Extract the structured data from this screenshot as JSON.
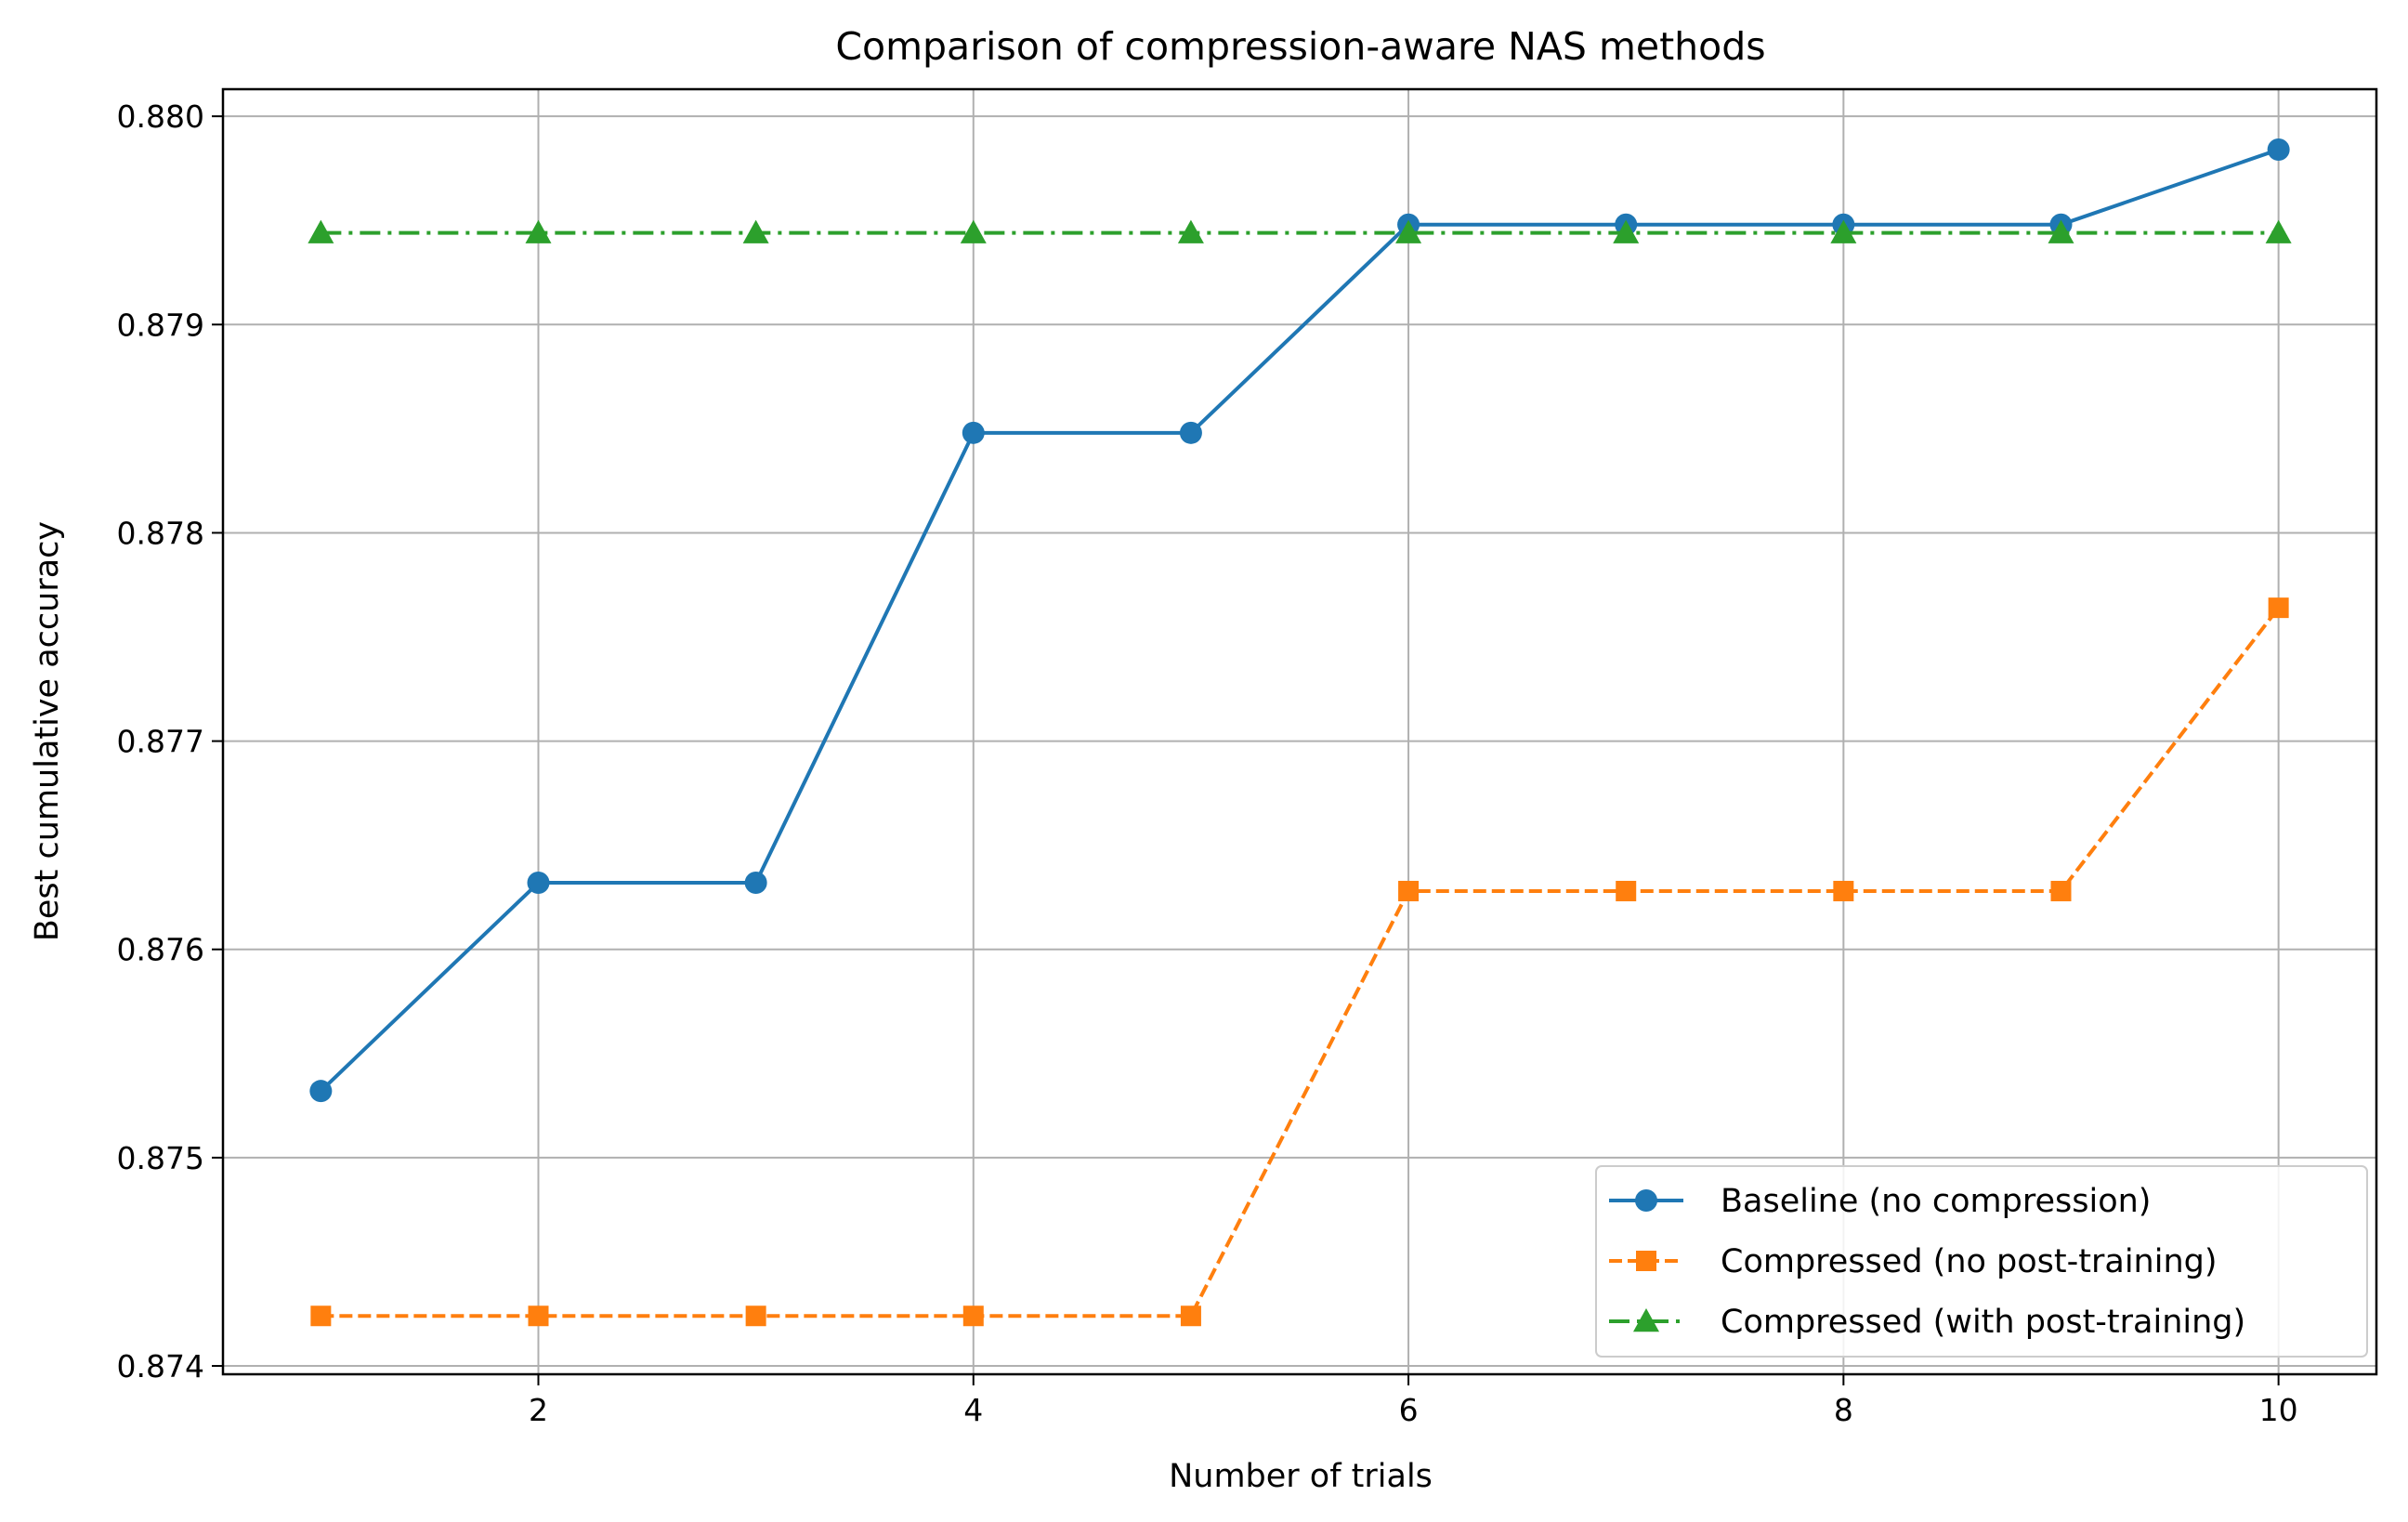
{
  "chart_data": {
    "type": "line",
    "title": "Comparison of compression-aware NAS methods",
    "xlabel": "Number of trials",
    "ylabel": "Best cumulative accuracy",
    "x": [
      1,
      2,
      3,
      4,
      5,
      6,
      7,
      8,
      9,
      10
    ],
    "xlim": [
      0.55,
      10.45
    ],
    "ylim": [
      0.87396,
      0.88013
    ],
    "xticks": [
      2,
      4,
      6,
      8,
      10
    ],
    "xtick_labels": [
      "2",
      "4",
      "6",
      "8",
      "10"
    ],
    "yticks": [
      0.874,
      0.875,
      0.876,
      0.877,
      0.878,
      0.879,
      0.88
    ],
    "ytick_labels": [
      "0.874",
      "0.875",
      "0.876",
      "0.877",
      "0.878",
      "0.879",
      "0.880"
    ],
    "grid": true,
    "legend_position": "lower-right",
    "series": [
      {
        "name": "Baseline (no compression)",
        "color": "#1f77b4",
        "line_style": "solid",
        "marker": "circle",
        "values": [
          0.87532,
          0.87632,
          0.87632,
          0.87848,
          0.87848,
          0.87948,
          0.87948,
          0.87948,
          0.87948,
          0.87984
        ]
      },
      {
        "name": "Compressed (no post-training)",
        "color": "#ff7f0e",
        "line_style": "dashed",
        "marker": "square",
        "values": [
          0.87424,
          0.87424,
          0.87424,
          0.87424,
          0.87424,
          0.87628,
          0.87628,
          0.87628,
          0.87628,
          0.87764
        ]
      },
      {
        "name": "Compressed (with post-training)",
        "color": "#2ca02c",
        "line_style": "dashdot",
        "marker": "triangle",
        "values": [
          0.87944,
          0.87944,
          0.87944,
          0.87944,
          0.87944,
          0.87944,
          0.87944,
          0.87944,
          0.87944,
          0.87944
        ]
      }
    ]
  }
}
